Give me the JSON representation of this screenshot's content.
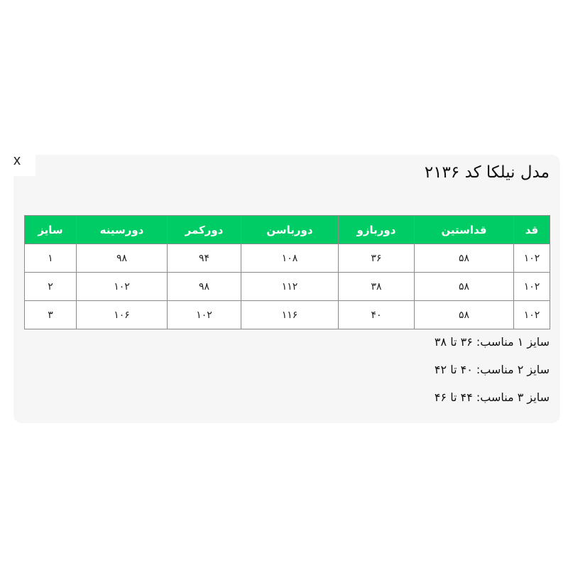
{
  "close_label": "x",
  "title": "مدل نیلکا کد ۲۱۳۶",
  "table": {
    "headers": [
      "قد",
      "قداستین",
      "دوربازو",
      "دورباسن",
      "دورکمر",
      "دورسینه",
      "سایز"
    ],
    "rows": [
      [
        "۱۰۲",
        "۵۸",
        "۳۶",
        "۱۰۸",
        "۹۴",
        "۹۸",
        "۱"
      ],
      [
        "۱۰۲",
        "۵۸",
        "۳۸",
        "۱۱۲",
        "۹۸",
        "۱۰۲",
        "۲"
      ],
      [
        "۱۰۲",
        "۵۸",
        "۴۰",
        "۱۱۶",
        "۱۰۲",
        "۱۰۶",
        "۳"
      ]
    ]
  },
  "notes": [
    "سایز ۱ مناسب: ۳۶ تا ۳۸",
    "سایز ۲ مناسب: ۴۰ تا ۴۲",
    "سایز ۳ مناسب: ۴۴ تا ۴۶"
  ],
  "colors": {
    "header_bg": "#00cc66",
    "panel_bg": "#f6f6f6"
  }
}
